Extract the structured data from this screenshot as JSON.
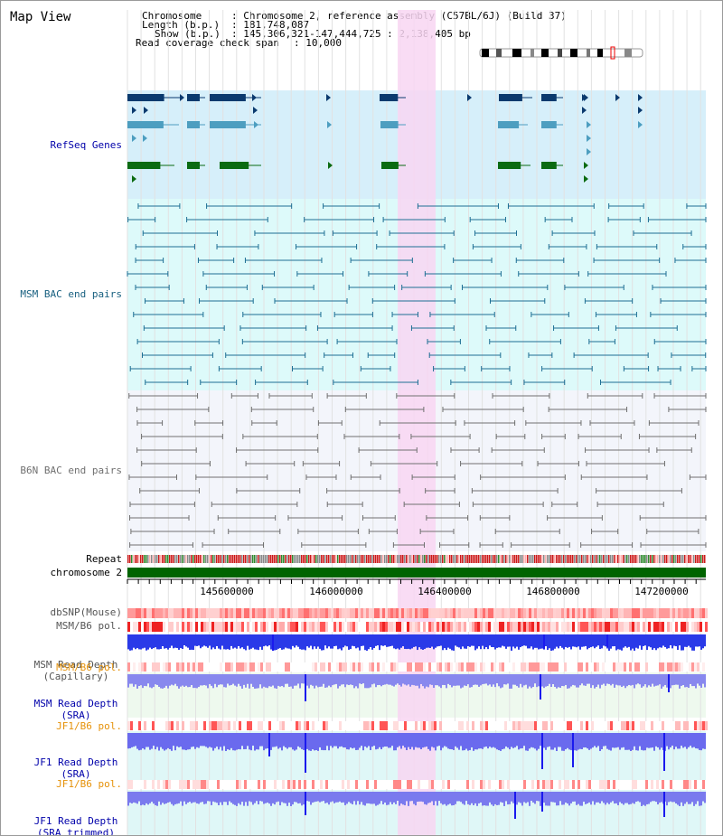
{
  "window": {
    "title": "Map View"
  },
  "header": {
    "chromosome_key": "Chromosome",
    "chromosome_val": ": Chromosome 2, reference assembly (C57BL/6J) (Build 37)",
    "length_key": "Length (b.p.)",
    "length_val": ": 181,748,087",
    "show_key": "Show (b.p.)",
    "show_val": ": 145,306,321-147,444,725 : 2,138,405 bp",
    "span_key": "Read coverage check span",
    "span_val": ": 10,000"
  },
  "tracks": {
    "refseq": "RefSeq Genes",
    "msm_bac": "MSM BAC end pairs",
    "b6n_bac": "B6N BAC end pairs",
    "repeat": "Repeat",
    "chromosome": "chromosome 2",
    "dbsnp": "dbSNP(Mouse)",
    "msm_b6_pol": "MSM/B6 pol.",
    "msm_depth_cap_1": "MSM Read Depth",
    "msm_depth_cap_2": "(Capillary)",
    "msm_b6_pol_2": "MSM/B6 pol.",
    "msm_depth_sra_1": "MSM Read Depth",
    "msm_depth_sra_2": "(SRA)",
    "jf1_b6_pol": "JF1/B6 pol.",
    "jf1_depth_sra_1": "JF1 Read Depth",
    "jf1_depth_sra_2": "(SRA)",
    "jf1_b6_pol_2": "JF1/B6 pol.",
    "jf1_depth_trim_1": "JF1 Read Depth",
    "jf1_depth_trim_2": "(SRA trimmed)"
  },
  "axis": {
    "ticks": [
      "145600000",
      "146000000",
      "146400000",
      "146800000",
      "147200000"
    ]
  },
  "colors": {
    "refseq_bg": "#d6effa",
    "msm_bg": "#ddfafa",
    "b6n_bg": "#f3f5fb",
    "highlight": "#f8d6f2",
    "gene_dark": "#0b3a6e",
    "gene_light": "#4d9ec0",
    "gene_green": "#0b6b12",
    "bac_msm": "#1e6f94",
    "bac_b6n": "#707070",
    "chrom_bar": "#006400",
    "label_blue": "#0000aa",
    "label_orange": "#e6920a",
    "label_teal": "#186080"
  }
}
